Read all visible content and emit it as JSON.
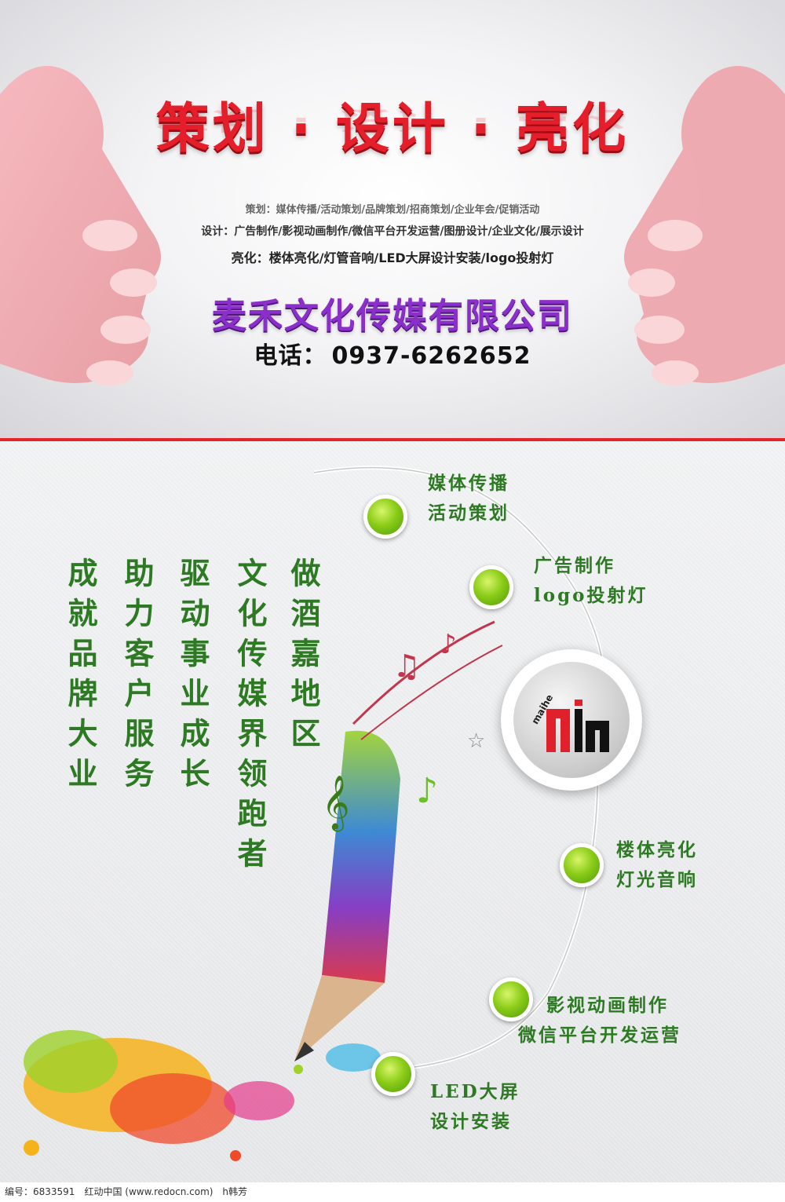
{
  "header": {
    "headline": "策划 · 设计 · 亮化",
    "services": [
      "策划：媒体传播/活动策划/品牌策划/招商策划/企业年会/促销活动",
      "设计：广告制作/影视动画制作/微信平台开发运营/图册设计/企业文化/展示设计",
      "亮化：楼体亮化/灯管音响/LED大屏设计安装/logo投射灯"
    ],
    "company": "麦禾文化传媒有限公司",
    "phone_label": "电话：",
    "phone": "0937-6262652"
  },
  "slogans": [
    "做酒嘉地区",
    "文化传媒界领跑者",
    "驱动事业成长",
    "助力客户服务",
    "成就品牌大业"
  ],
  "timeline": [
    {
      "line1": "媒体传播",
      "line2": "活动策划"
    },
    {
      "line1": "广告制作",
      "line2": "logo投射灯"
    },
    {
      "line1": "楼体亮化",
      "line2": "灯光音响"
    },
    {
      "line1": "影视动画制作",
      "line2": "微信平台开发运营"
    },
    {
      "line1": "LED大屏",
      "line2": "设计安装"
    }
  ],
  "logo": {
    "text": "maihe"
  },
  "footer": "编号：6833591　红动中国 (www.redocn.com)　h韩芳",
  "colors": {
    "headline": "#e41e2a",
    "company": "#8a2fc9",
    "green": "#2e7a24",
    "divider": "#e2252b"
  }
}
